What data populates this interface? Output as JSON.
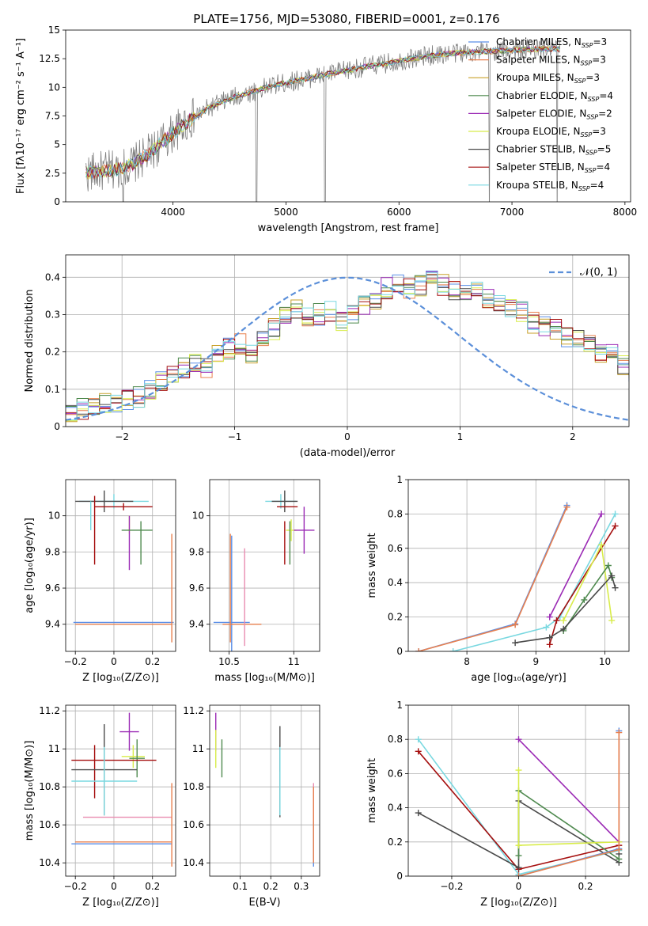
{
  "figure": {
    "title": "PLATE=1756, MJD=53080, FIBERID=0001, z=0.176"
  },
  "colors": {
    "Chabrier MILES": "#5a8ee6",
    "Salpeter MILES": "#e8804f",
    "Kroupa MILES": "#c8a02a",
    "Chabrier ELODIE": "#4f8a4f",
    "Salpeter ELODIE": "#9b2ab5",
    "Kroupa ELODIE": "#d8ec4a",
    "Chabrier STELIB": "#4a4a4a",
    "Salpeter STELIB": "#a50f0f",
    "Kroupa STELIB": "#79d8e0",
    "data": "#808080",
    "normal": "#5b8fd9",
    "pink": "#e98bb0"
  },
  "chart_data": [
    {
      "id": "spectrum",
      "type": "line",
      "title": "PLATE=1756, MJD=53080, FIBERID=0001, z=0.176",
      "xlabel": "wavelength [Angstrom, rest frame]",
      "ylabel": "Flux [fλ10⁻¹⁷ erg cm⁻² s⁻¹ A⁻¹]",
      "xlim": [
        3050,
        8050
      ],
      "ylim": [
        0,
        15
      ],
      "xticks": [
        4000,
        5000,
        6000,
        7000,
        8000
      ],
      "yticks": [
        0.0,
        2.5,
        5.0,
        7.5,
        10.0,
        12.5,
        15.0
      ],
      "grid": false,
      "legend_position": "right",
      "legend": [
        {
          "model": "Chabrier MILES",
          "label": "Chabrier MILES, N",
          "sub": "SSP",
          "tail": "=3"
        },
        {
          "model": "Salpeter MILES",
          "label": "Salpeter MILES, N",
          "sub": "SSP",
          "tail": "=3"
        },
        {
          "model": "Kroupa MILES",
          "label": "Kroupa MILES, N",
          "sub": "SSP",
          "tail": "=3"
        },
        {
          "model": "Chabrier ELODIE",
          "label": "Chabrier ELODIE, N",
          "sub": "SSP",
          "tail": "=4"
        },
        {
          "model": "Salpeter ELODIE",
          "label": "Salpeter ELODIE, N",
          "sub": "SSP",
          "tail": "=2"
        },
        {
          "model": "Kroupa ELODIE",
          "label": "Kroupa ELODIE, N",
          "sub": "SSP",
          "tail": "=3"
        },
        {
          "model": "Chabrier STELIB",
          "label": "Chabrier STELIB, N",
          "sub": "SSP",
          "tail": "=5"
        },
        {
          "model": "Salpeter STELIB",
          "label": "Salpeter STELIB, N",
          "sub": "SSP",
          "tail": "=4"
        },
        {
          "model": "Kroupa STELIB",
          "label": "Kroupa STELIB, N",
          "sub": "SSP",
          "tail": "=4"
        }
      ],
      "continuum_anchors": {
        "x": [
          3200,
          3500,
          3650,
          3800,
          3950,
          4100,
          4300,
          4500,
          4700,
          4900,
          5100,
          5300,
          5500,
          5700,
          5900,
          6100,
          6300,
          6500,
          6700,
          6900,
          7100,
          7300,
          7500,
          7700
        ],
        "y": [
          2.5,
          2.8,
          3.3,
          4.3,
          5.6,
          6.8,
          8.1,
          9.0,
          9.6,
          10.2,
          10.6,
          11.0,
          11.4,
          11.8,
          12.1,
          12.5,
          12.8,
          13.0,
          13.1,
          13.2,
          13.3,
          13.35,
          13.4,
          13.4
        ]
      },
      "data_range": [
        3230,
        7430
      ]
    },
    {
      "id": "residuals",
      "type": "step",
      "xlabel": "(data-model)/error",
      "ylabel": "Normed distribution",
      "xlim": [
        -2.5,
        2.5
      ],
      "ylim": [
        0,
        0.46
      ],
      "xticks": [
        -2,
        -1,
        0,
        1,
        2
      ],
      "yticks": [
        0.0,
        0.1,
        0.2,
        0.3,
        0.4
      ],
      "grid": true,
      "legend_position": "top-right",
      "reference_label": "𝒩(0, 1)",
      "bin_edges_start": -2.5,
      "bin_width": 0.1,
      "hist_base": [
        0.04,
        0.046,
        0.053,
        0.062,
        0.058,
        0.07,
        0.08,
        0.1,
        0.12,
        0.14,
        0.16,
        0.17,
        0.16,
        0.19,
        0.21,
        0.22,
        0.2,
        0.23,
        0.26,
        0.3,
        0.31,
        0.29,
        0.3,
        0.31,
        0.28,
        0.3,
        0.32,
        0.34,
        0.37,
        0.38,
        0.37,
        0.38,
        0.4,
        0.38,
        0.36,
        0.35,
        0.37,
        0.34,
        0.33,
        0.32,
        0.31,
        0.28,
        0.27,
        0.26,
        0.24,
        0.23,
        0.22,
        0.2,
        0.19,
        0.16,
        0.15,
        0.14,
        0.12,
        0.11,
        0.1,
        0.09,
        0.08,
        0.07,
        0.065,
        0.06,
        0.05,
        0.045,
        0.04
      ],
      "hist_series": [
        "Chabrier MILES",
        "Salpeter MILES",
        "Kroupa MILES",
        "Chabrier ELODIE",
        "Salpeter ELODIE",
        "Kroupa ELODIE",
        "Chabrier STELIB",
        "Salpeter STELIB",
        "Kroupa STELIB"
      ]
    },
    {
      "id": "age_vs_Z",
      "type": "errorbar",
      "xlabel": "Z [log₁₀(Z/Z⊙)]",
      "ylabel": "age  [log₁₀(age/yr)]",
      "xlim": [
        -0.25,
        0.32
      ],
      "ylim": [
        9.25,
        10.2
      ],
      "xticks": [
        -0.2,
        0.0,
        0.2
      ],
      "yticks": [
        9.4,
        9.6,
        9.8,
        10.0
      ],
      "grid": true,
      "points": [
        {
          "m": "Kroupa STELIB",
          "x": 0.0,
          "y": 10.08,
          "xe": 0.18,
          "ye": 0.04
        },
        {
          "m": "Chabrier STELIB",
          "x": -0.05,
          "y": 10.08,
          "xe": 0.15,
          "ye": 0.06
        },
        {
          "m": "Salpeter STELIB",
          "x": 0.05,
          "y": 10.05,
          "xe": 0.15,
          "ye": 0.02
        },
        {
          "m": "Kroupa STELIB",
          "x": -0.12,
          "y": 10.0,
          "xe": 0.0,
          "ye": 0.08
        },
        {
          "m": "Salpeter STELIB",
          "x": -0.1,
          "y": 9.92,
          "xe": 0.0,
          "ye": 0.19
        },
        {
          "m": "Kroupa ELODIE",
          "x": 0.08,
          "y": 9.95,
          "xe": 0.0,
          "ye": 0.05
        },
        {
          "m": "Salpeter ELODIE",
          "x": 0.08,
          "y": 9.85,
          "xe": 0.0,
          "ye": 0.15
        },
        {
          "m": "Chabrier ELODIE",
          "x": 0.12,
          "y": 9.92,
          "xe": 0.08,
          "ye": 0.0
        },
        {
          "m": "Chabrier ELODIE",
          "x": 0.14,
          "y": 9.85,
          "xe": 0.0,
          "ye": 0.12
        },
        {
          "m": "Chabrier MILES",
          "x": 0.05,
          "y": 9.41,
          "xe": 0.26,
          "ye": 0.0
        },
        {
          "m": "Salpeter MILES",
          "x": 0.05,
          "y": 9.4,
          "xe": 0.25,
          "ye": 0.0
        },
        {
          "m": "Salpeter MILES",
          "x": 0.3,
          "y": 9.6,
          "xe": 0.0,
          "ye": 0.3
        }
      ]
    },
    {
      "id": "age_vs_mass",
      "type": "errorbar",
      "xlabel": "mass [log₁₀(M/M⊙)]",
      "ylabel": "",
      "xlim": [
        10.35,
        11.2
      ],
      "ylim": [
        9.25,
        10.2
      ],
      "xticks": [
        10.5,
        11.0
      ],
      "yticks": [
        9.4,
        9.6,
        9.8,
        10.0
      ],
      "grid": true,
      "points": [
        {
          "m": "Kroupa STELIB",
          "x": 10.9,
          "y": 10.08,
          "xe": 0.12,
          "ye": 0.04
        },
        {
          "m": "Chabrier STELIB",
          "x": 10.93,
          "y": 10.08,
          "xe": 0.1,
          "ye": 0.06
        },
        {
          "m": "Salpeter STELIB",
          "x": 10.95,
          "y": 10.05,
          "xe": 0.08,
          "ye": 0.0
        },
        {
          "m": "Kroupa ELODIE",
          "x": 10.98,
          "y": 9.92,
          "xe": 0.04,
          "ye": 0.06
        },
        {
          "m": "Salpeter ELODIE",
          "x": 11.08,
          "y": 9.92,
          "xe": 0.08,
          "ye": 0.13
        },
        {
          "m": "Chabrier ELODIE",
          "x": 10.97,
          "y": 9.85,
          "xe": 0.0,
          "ye": 0.12
        },
        {
          "m": "Salpeter STELIB",
          "x": 10.93,
          "y": 9.85,
          "xe": 0.0,
          "ye": 0.12
        },
        {
          "m": "Chabrier MILES",
          "x": 10.52,
          "y": 9.41,
          "xe": 0.14,
          "ye": 0.48
        },
        {
          "m": "Salpeter MILES",
          "x": 10.6,
          "y": 9.4,
          "xe": 0.15,
          "ye": 0.0
        },
        {
          "m": "Salpeter MILES",
          "x": 10.51,
          "y": 9.6,
          "xe": 0.0,
          "ye": 0.3
        },
        {
          "m": "pink",
          "x": 10.62,
          "y": 9.55,
          "xe": 0.0,
          "ye": 0.27
        }
      ]
    },
    {
      "id": "weight_vs_age",
      "type": "line",
      "xlabel": "age  [log₁₀(age/yr)]",
      "ylabel": "mass weight",
      "xlim": [
        7.15,
        10.35
      ],
      "ylim": [
        0,
        1.0
      ],
      "xticks": [
        8,
        9,
        10
      ],
      "yticks": [
        0.0,
        0.2,
        0.4,
        0.6,
        0.8,
        1.0
      ],
      "grid": true,
      "series": [
        {
          "m": "Chabrier MILES",
          "x": [
            7.3,
            8.7,
            9.45
          ],
          "y": [
            0.0,
            0.16,
            0.85
          ]
        },
        {
          "m": "Salpeter MILES",
          "x": [
            7.3,
            8.7,
            9.45
          ],
          "y": [
            0.0,
            0.155,
            0.84
          ]
        },
        {
          "m": "Kroupa STELIB",
          "x": [
            7.8,
            9.15,
            9.35,
            10.15
          ],
          "y": [
            0.0,
            0.14,
            0.2,
            0.8
          ]
        },
        {
          "m": "Salpeter ELODIE",
          "x": [
            9.2,
            9.95
          ],
          "y": [
            0.2,
            0.8
          ]
        },
        {
          "m": "Salpeter STELIB",
          "x": [
            9.2,
            9.3,
            10.15
          ],
          "y": [
            0.04,
            0.18,
            0.73
          ]
        },
        {
          "m": "Kroupa ELODIE",
          "x": [
            9.4,
            9.95,
            10.1
          ],
          "y": [
            0.18,
            0.62,
            0.18
          ]
        },
        {
          "m": "Chabrier ELODIE",
          "x": [
            9.4,
            9.7,
            10.05,
            10.1
          ],
          "y": [
            0.12,
            0.3,
            0.5,
            0.43
          ]
        },
        {
          "m": "Chabrier STELIB",
          "x": [
            8.7,
            9.2,
            9.4,
            10.1,
            10.15
          ],
          "y": [
            0.05,
            0.08,
            0.13,
            0.44,
            0.37
          ]
        }
      ]
    },
    {
      "id": "mass_vs_Z",
      "type": "errorbar",
      "xlabel": "Z [log₁₀(Z/Z⊙)]",
      "ylabel": "mass [log₁₀(M/M⊙)]",
      "xlim": [
        -0.25,
        0.32
      ],
      "ylim": [
        10.33,
        11.23
      ],
      "xticks": [
        -0.2,
        0.0,
        0.2
      ],
      "yticks": [
        10.4,
        10.6,
        10.8,
        11.0,
        11.2
      ],
      "grid": true,
      "points": [
        {
          "m": "Salpeter ELODIE",
          "x": 0.08,
          "y": 11.09,
          "xe": 0.05,
          "ye": 0.1
        },
        {
          "m": "Kroupa ELODIE",
          "x": 0.1,
          "y": 10.96,
          "xe": 0.06,
          "ye": 0.06
        },
        {
          "m": "Chabrier ELODIE",
          "x": 0.12,
          "y": 10.95,
          "xe": 0.04,
          "ye": 0.1
        },
        {
          "m": "Salpeter STELIB",
          "x": 0.0,
          "y": 10.94,
          "xe": 0.22,
          "ye": 0.0
        },
        {
          "m": "Salpeter STELIB",
          "x": -0.1,
          "y": 10.88,
          "xe": 0.0,
          "ye": 0.14
        },
        {
          "m": "Chabrier STELIB",
          "x": -0.05,
          "y": 10.89,
          "xe": 0.17,
          "ye": 0.24
        },
        {
          "m": "Kroupa STELIB",
          "x": -0.05,
          "y": 10.83,
          "xe": 0.17,
          "ye": 0.18
        },
        {
          "m": "pink",
          "x": 0.07,
          "y": 10.64,
          "xe": 0.23,
          "ye": 0.0
        },
        {
          "m": "Chabrier MILES",
          "x": 0.04,
          "y": 10.5,
          "xe": 0.26,
          "ye": 0.0
        },
        {
          "m": "Salpeter MILES",
          "x": 0.05,
          "y": 10.51,
          "xe": 0.25,
          "ye": 0.0
        },
        {
          "m": "Salpeter MILES",
          "x": 0.3,
          "y": 10.6,
          "xe": 0.0,
          "ye": 0.22
        }
      ]
    },
    {
      "id": "mass_vs_ebv",
      "type": "errorbar",
      "xlabel": "E(B-V)",
      "ylabel": "",
      "xlim": [
        0.0,
        0.36
      ],
      "ylim": [
        10.33,
        11.23
      ],
      "xticks": [
        0.1,
        0.2,
        0.3
      ],
      "yticks": [
        10.4,
        10.6,
        10.8,
        11.0,
        11.2
      ],
      "grid": true,
      "points": [
        {
          "m": "Salpeter ELODIE",
          "x": 0.02,
          "y": 11.09,
          "xe": 0.0,
          "ye": 0.1
        },
        {
          "m": "Kroupa ELODIE",
          "x": 0.02,
          "y": 11.0,
          "xe": 0.0,
          "ye": 0.1
        },
        {
          "m": "Chabrier ELODIE",
          "x": 0.04,
          "y": 10.95,
          "xe": 0.0,
          "ye": 0.1
        },
        {
          "m": "Salpeter STELIB",
          "x": 0.23,
          "y": 10.95,
          "xe": 0.0,
          "ye": 0.07
        },
        {
          "m": "Chabrier STELIB",
          "x": 0.23,
          "y": 10.88,
          "xe": 0.0,
          "ye": 0.24
        },
        {
          "m": "Kroupa STELIB",
          "x": 0.23,
          "y": 10.83,
          "xe": 0.0,
          "ye": 0.18
        },
        {
          "m": "pink",
          "x": 0.34,
          "y": 10.62,
          "xe": 0.0,
          "ye": 0.2
        },
        {
          "m": "Chabrier MILES",
          "x": 0.34,
          "y": 10.5,
          "xe": 0.0,
          "ye": 0.12
        },
        {
          "m": "Salpeter MILES",
          "x": 0.34,
          "y": 10.6,
          "xe": 0.0,
          "ye": 0.2
        }
      ]
    },
    {
      "id": "weight_vs_Z",
      "type": "line",
      "xlabel": "Z [log₁₀(Z/Z⊙)]",
      "ylabel": "mass weight",
      "xlim": [
        -0.33,
        0.33
      ],
      "ylim": [
        0,
        1.0
      ],
      "xticks": [
        -0.2,
        0.0,
        0.2
      ],
      "yticks": [
        0.0,
        0.2,
        0.4,
        0.6,
        0.8,
        1.0
      ],
      "grid": true,
      "series": [
        {
          "m": "Kroupa STELIB",
          "x": [
            -0.3,
            0.0,
            0.3
          ],
          "y": [
            0.8,
            0.01,
            0.15
          ]
        },
        {
          "m": "Salpeter STELIB",
          "x": [
            -0.3,
            0.0,
            0.3
          ],
          "y": [
            0.73,
            0.04,
            0.18
          ]
        },
        {
          "m": "Chabrier STELIB",
          "x": [
            -0.3,
            0.0,
            0.0,
            0.3,
            0.3
          ],
          "y": [
            0.37,
            0.05,
            0.44,
            0.08,
            0.13
          ]
        },
        {
          "m": "Salpeter ELODIE",
          "x": [
            0.0,
            0.3
          ],
          "y": [
            0.8,
            0.2
          ]
        },
        {
          "m": "Chabrier ELODIE",
          "x": [
            0.0,
            0.0,
            0.3
          ],
          "y": [
            0.12,
            0.5,
            0.1
          ]
        },
        {
          "m": "Kroupa ELODIE",
          "x": [
            0.0,
            0.0,
            0.3
          ],
          "y": [
            0.62,
            0.18,
            0.2
          ]
        },
        {
          "m": "Chabrier MILES",
          "x": [
            0.0,
            0.3,
            0.3
          ],
          "y": [
            0.0,
            0.16,
            0.85
          ]
        },
        {
          "m": "Salpeter MILES",
          "x": [
            0.0,
            0.3,
            0.3
          ],
          "y": [
            0.0,
            0.155,
            0.84
          ]
        }
      ]
    }
  ]
}
